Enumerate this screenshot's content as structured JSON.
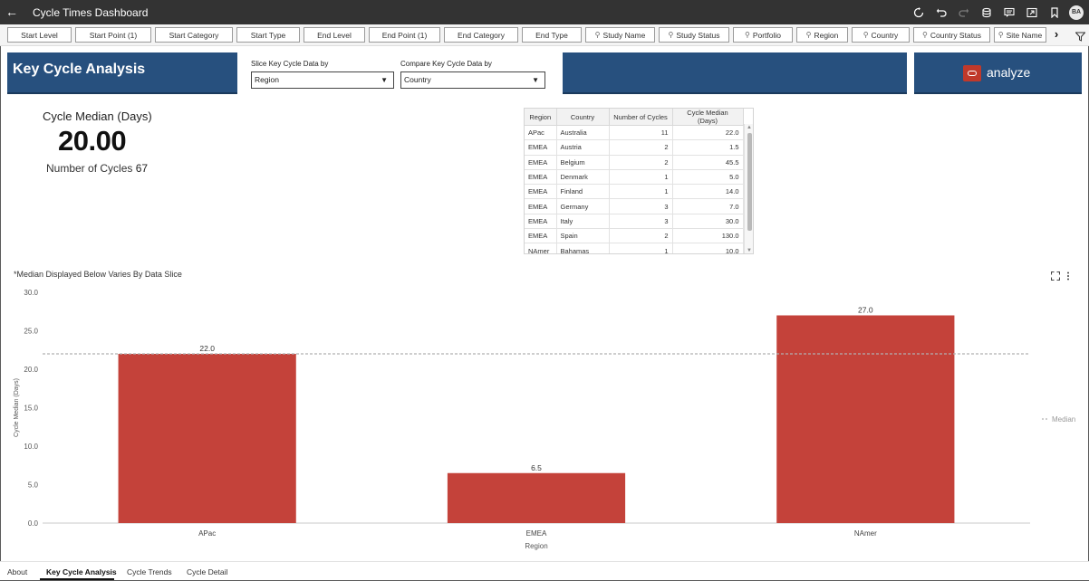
{
  "app": {
    "title": "Cycle Times Dashboard",
    "user_initials": "BA"
  },
  "filters": [
    {
      "label": "Start Level",
      "pinned": false
    },
    {
      "label": "Start Point (1)",
      "pinned": false
    },
    {
      "label": "Start Category",
      "pinned": false
    },
    {
      "label": "Start Type",
      "pinned": false
    },
    {
      "label": "End Level",
      "pinned": false
    },
    {
      "label": "End Point (1)",
      "pinned": false
    },
    {
      "label": "End Category",
      "pinned": false
    },
    {
      "label": "End Type",
      "pinned": false
    },
    {
      "label": "Study Name",
      "pinned": true
    },
    {
      "label": "Study Status",
      "pinned": true
    },
    {
      "label": "Portfolio",
      "pinned": true
    },
    {
      "label": "Region",
      "pinned": true
    },
    {
      "label": "Country",
      "pinned": true
    },
    {
      "label": "Country Status",
      "pinned": true
    },
    {
      "label": "Site Name",
      "pinned": true
    }
  ],
  "header": {
    "title": "Key Cycle Analysis",
    "slice_label": "Slice Key Cycle Data by",
    "slice_value": "Region",
    "compare_label": "Compare Key Cycle Data by",
    "compare_value": "Country",
    "brand_text": "analyze"
  },
  "kpi": {
    "label": "Cycle Median (Days)",
    "value": "20.00",
    "sub_label": "Number of Cycles",
    "sub_value": "67"
  },
  "table": {
    "columns": [
      "Region",
      "Country",
      "Number of Cycles",
      "Cycle Median (Days)"
    ],
    "rows": [
      [
        "APac",
        "Australia",
        "11",
        "22.0"
      ],
      [
        "EMEA",
        "Austria",
        "2",
        "1.5"
      ],
      [
        "EMEA",
        "Belgium",
        "2",
        "45.5"
      ],
      [
        "EMEA",
        "Denmark",
        "1",
        "5.0"
      ],
      [
        "EMEA",
        "Finland",
        "1",
        "14.0"
      ],
      [
        "EMEA",
        "Germany",
        "3",
        "7.0"
      ],
      [
        "EMEA",
        "Italy",
        "3",
        "30.0"
      ],
      [
        "EMEA",
        "Spain",
        "2",
        "130.0"
      ],
      [
        "NAmer",
        "Bahamas",
        "1",
        "10.0"
      ]
    ]
  },
  "chart_note": "*Median Displayed Below Varies By Data Slice",
  "chart_data": {
    "type": "bar",
    "categories": [
      "APac",
      "EMEA",
      "NAmer"
    ],
    "values": [
      22.0,
      6.5,
      27.0
    ],
    "value_labels": [
      "22.0",
      "6.5",
      "27.0"
    ],
    "xlabel": "Region",
    "ylabel": "Cycle Median (Days)",
    "ylim": [
      0,
      30
    ],
    "yticks": [
      "0.0",
      "5.0",
      "10.0",
      "15.0",
      "20.0",
      "25.0",
      "30.0"
    ],
    "reference_line": {
      "name": "Median",
      "label": "Median",
      "value": 22.0
    },
    "bar_color": "#c4423a",
    "grid": false,
    "legend": "right"
  },
  "tabs": [
    {
      "label": "About",
      "active": false
    },
    {
      "label": "Key Cycle Analysis",
      "active": true
    },
    {
      "label": "Cycle Trends",
      "active": false
    },
    {
      "label": "Cycle Detail",
      "active": false
    }
  ],
  "colors": {
    "topbar": "#333333",
    "header_panel": "#27507e",
    "brand_red": "#c0392b",
    "bar": "#c4423a"
  },
  "icons": {
    "back": "arrow-left-icon",
    "topbar": [
      "refresh-icon",
      "undo-icon",
      "redo-icon",
      "data-icon",
      "comment-icon",
      "present-icon",
      "bookmark-icon"
    ],
    "chart": [
      "expand-icon",
      "more-vertical-icon"
    ],
    "filter": "funnel-icon"
  }
}
